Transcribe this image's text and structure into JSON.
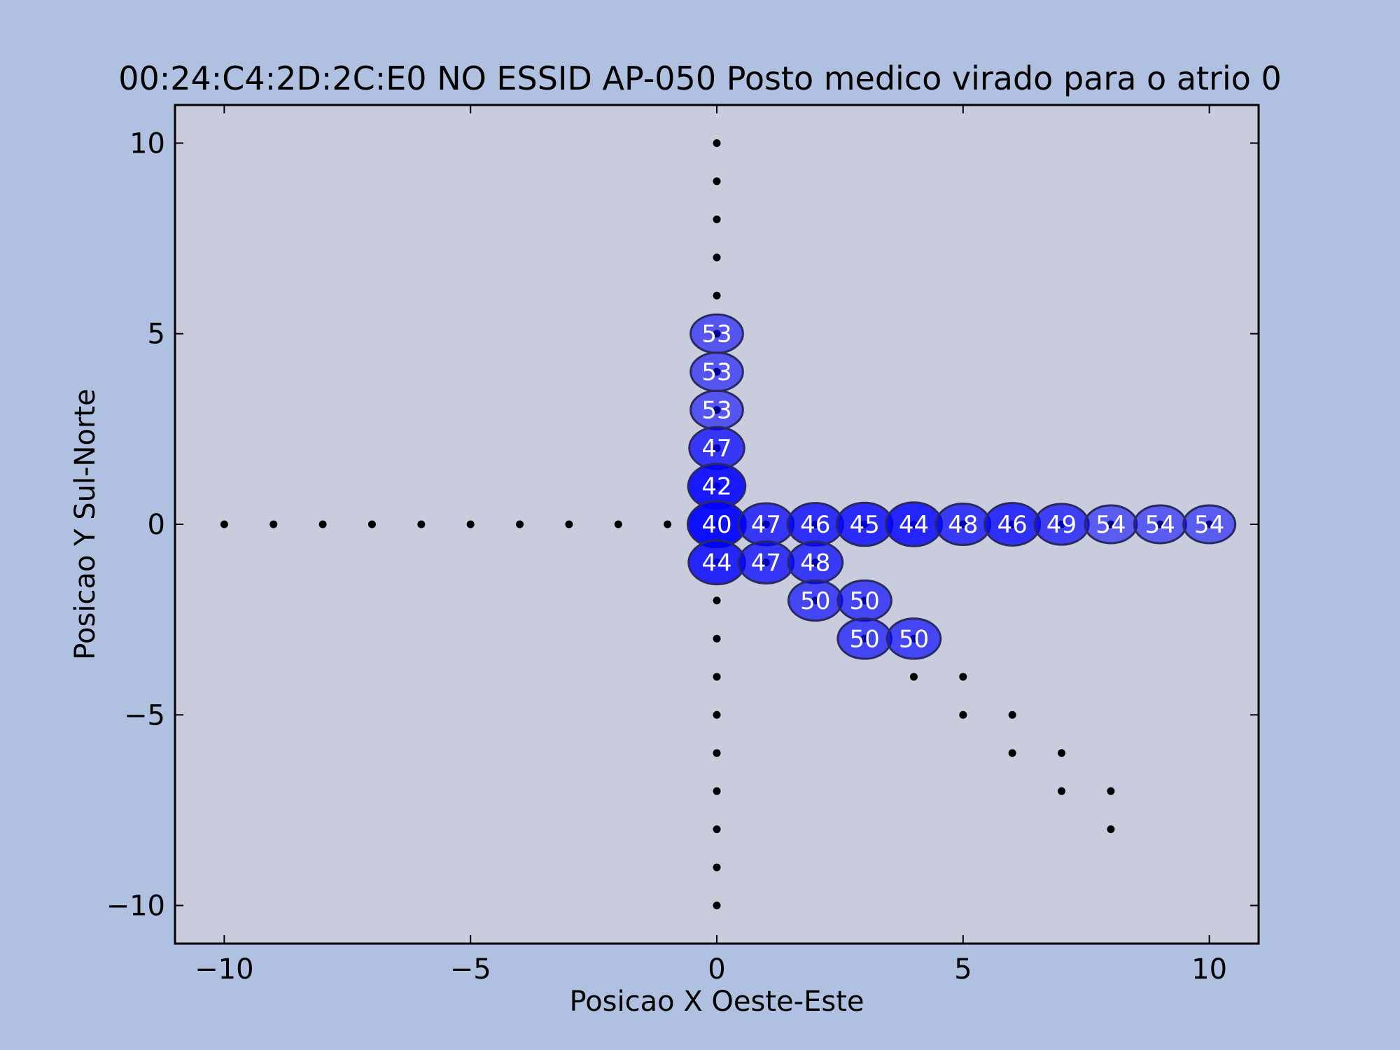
{
  "chart_data": {
    "type": "scatter",
    "title": "00:24:C4:2D:2C:E0 NO ESSID AP-050 Posto medico virado para o atrio  0",
    "xlabel": "Posicao X Oeste-Este",
    "ylabel": "Posicao Y Sul-Norte",
    "xlim": [
      -11,
      11
    ],
    "ylim": [
      -11,
      11
    ],
    "xticks": [
      -10,
      -5,
      0,
      5,
      10
    ],
    "yticks": [
      -10,
      -5,
      0,
      5,
      10
    ],
    "xtick_labels": [
      "−10",
      "−5",
      "0",
      "5",
      "10"
    ],
    "ytick_labels": [
      "−10",
      "−5",
      "0",
      "5",
      "10"
    ],
    "grid": false,
    "colors": {
      "figure_background": "#b0c0e0",
      "axes_background": "#c8ccdc",
      "marker_fill": "#0000ff",
      "marker_edge": "#2a2a60",
      "point": "#000000",
      "marker_text": "#ffffff"
    },
    "points": [
      {
        "x": -10,
        "y": 0
      },
      {
        "x": -9,
        "y": 0
      },
      {
        "x": -8,
        "y": 0
      },
      {
        "x": -7,
        "y": 0
      },
      {
        "x": -6,
        "y": 0
      },
      {
        "x": -5,
        "y": 0
      },
      {
        "x": -4,
        "y": 0
      },
      {
        "x": -3,
        "y": 0
      },
      {
        "x": -2,
        "y": 0
      },
      {
        "x": -1,
        "y": 0
      },
      {
        "x": 0,
        "y": 10
      },
      {
        "x": 0,
        "y": 9
      },
      {
        "x": 0,
        "y": 8
      },
      {
        "x": 0,
        "y": 7
      },
      {
        "x": 0,
        "y": 6
      },
      {
        "x": 0,
        "y": 5
      },
      {
        "x": 0,
        "y": 4
      },
      {
        "x": 0,
        "y": 3
      },
      {
        "x": 0,
        "y": 2
      },
      {
        "x": 0,
        "y": 1
      },
      {
        "x": 0,
        "y": 0
      },
      {
        "x": 0,
        "y": -1
      },
      {
        "x": 0,
        "y": -2
      },
      {
        "x": 0,
        "y": -3
      },
      {
        "x": 0,
        "y": -4
      },
      {
        "x": 0,
        "y": -5
      },
      {
        "x": 0,
        "y": -6
      },
      {
        "x": 0,
        "y": -7
      },
      {
        "x": 0,
        "y": -8
      },
      {
        "x": 0,
        "y": -9
      },
      {
        "x": 0,
        "y": -10
      },
      {
        "x": 1,
        "y": 0
      },
      {
        "x": 2,
        "y": 0
      },
      {
        "x": 3,
        "y": 0
      },
      {
        "x": 4,
        "y": 0
      },
      {
        "x": 5,
        "y": 0
      },
      {
        "x": 6,
        "y": 0
      },
      {
        "x": 7,
        "y": 0
      },
      {
        "x": 8,
        "y": 0
      },
      {
        "x": 9,
        "y": 0
      },
      {
        "x": 10,
        "y": 0
      },
      {
        "x": 1,
        "y": -1
      },
      {
        "x": 2,
        "y": -1
      },
      {
        "x": 2,
        "y": -2
      },
      {
        "x": 3,
        "y": -2
      },
      {
        "x": 3,
        "y": -3
      },
      {
        "x": 4,
        "y": -3
      },
      {
        "x": 4,
        "y": -4
      },
      {
        "x": 5,
        "y": -4
      },
      {
        "x": 5,
        "y": -5
      },
      {
        "x": 6,
        "y": -5
      },
      {
        "x": 6,
        "y": -6
      },
      {
        "x": 7,
        "y": -6
      },
      {
        "x": 7,
        "y": -7
      },
      {
        "x": 8,
        "y": -7
      },
      {
        "x": 8,
        "y": -8
      }
    ],
    "measurements": [
      {
        "x": 0,
        "y": 5,
        "value": 53
      },
      {
        "x": 0,
        "y": 4,
        "value": 53
      },
      {
        "x": 0,
        "y": 3,
        "value": 53
      },
      {
        "x": 0,
        "y": 2,
        "value": 47
      },
      {
        "x": 0,
        "y": 1,
        "value": 42
      },
      {
        "x": 0,
        "y": 0,
        "value": 40
      },
      {
        "x": 1,
        "y": 0,
        "value": 47
      },
      {
        "x": 2,
        "y": 0,
        "value": 46
      },
      {
        "x": 3,
        "y": 0,
        "value": 45
      },
      {
        "x": 4,
        "y": 0,
        "value": 44
      },
      {
        "x": 5,
        "y": 0,
        "value": 48
      },
      {
        "x": 6,
        "y": 0,
        "value": 46
      },
      {
        "x": 7,
        "y": 0,
        "value": 49
      },
      {
        "x": 8,
        "y": 0,
        "value": 54
      },
      {
        "x": 9,
        "y": 0,
        "value": 54
      },
      {
        "x": 10,
        "y": 0,
        "value": 54
      },
      {
        "x": 0,
        "y": -1,
        "value": 44
      },
      {
        "x": 1,
        "y": -1,
        "value": 47
      },
      {
        "x": 2,
        "y": -1,
        "value": 48
      },
      {
        "x": 2,
        "y": -2,
        "value": 50
      },
      {
        "x": 3,
        "y": -2,
        "value": 50
      },
      {
        "x": 3,
        "y": -3,
        "value": 50
      },
      {
        "x": 4,
        "y": -3,
        "value": 50
      }
    ]
  }
}
